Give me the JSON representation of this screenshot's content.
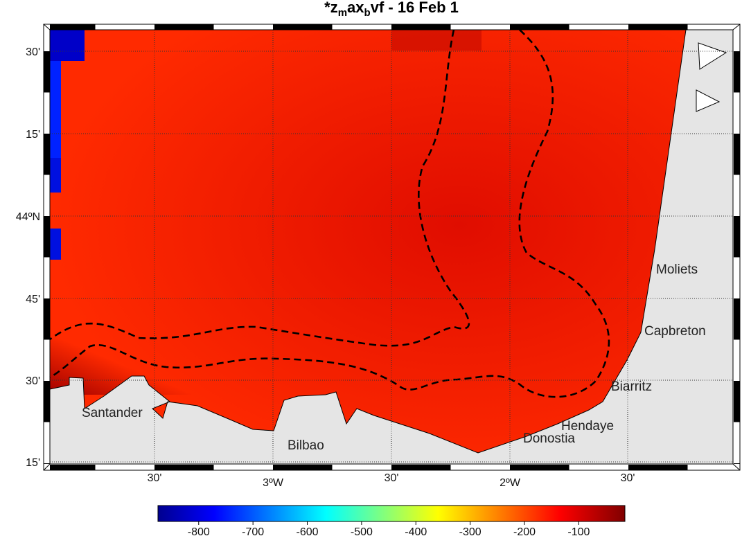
{
  "title_parts": [
    "*z",
    "m",
    "ax",
    "b",
    "vf  -  16  Feb  1"
  ],
  "lat_labels": [
    "30'",
    "15'",
    "44ºN",
    "45'",
    "30'",
    "15'"
  ],
  "lon_labels": [
    "30'",
    "3ºW",
    "30'",
    "2ºW",
    "30'"
  ],
  "places": [
    "Moliets",
    "Capbreton",
    "Biarritz",
    "Hendaye",
    "Donostia",
    "Santander",
    "Bilbao"
  ],
  "colorbar": {
    "lim": [
      -875,
      -15
    ],
    "ticks": [
      -800,
      -700,
      -600,
      -500,
      -400,
      -300,
      -200,
      -100
    ]
  }
}
